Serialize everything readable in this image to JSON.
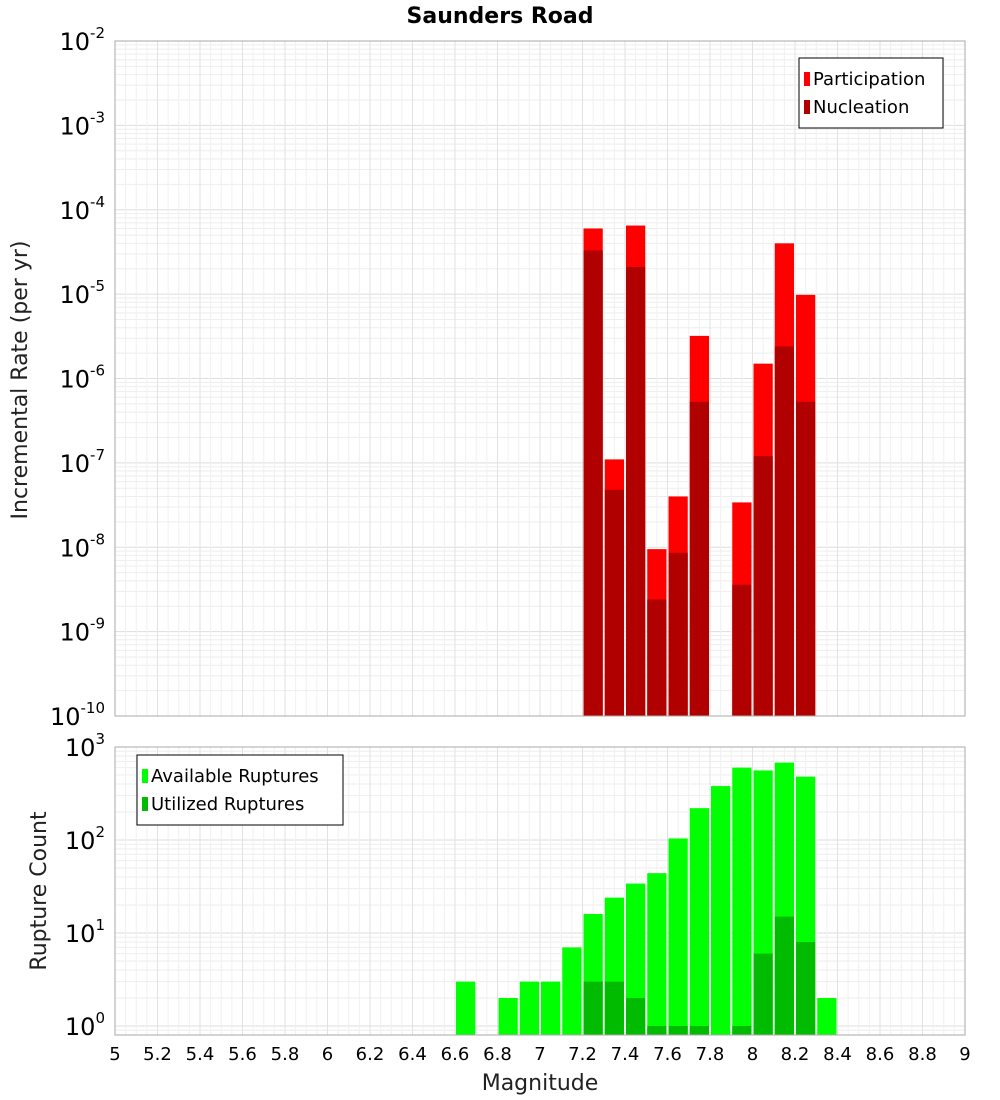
{
  "chart_data": [
    {
      "type": "bar",
      "title": "Saunders Road",
      "ylabel": "Incremental Rate (per yr)",
      "xlabel": "",
      "yscale": "log",
      "ylim": [
        1e-10,
        0.01
      ],
      "xlim": [
        5,
        9
      ],
      "bar_width": 0.1,
      "grid": true,
      "legend_position": "top-right",
      "y_ticks": [
        {
          "base": "10",
          "exp": "-10"
        },
        {
          "base": "10",
          "exp": "-9"
        },
        {
          "base": "10",
          "exp": "-8"
        },
        {
          "base": "10",
          "exp": "-7"
        },
        {
          "base": "10",
          "exp": "-6"
        },
        {
          "base": "10",
          "exp": "-5"
        },
        {
          "base": "10",
          "exp": "-4"
        },
        {
          "base": "10",
          "exp": "-3"
        },
        {
          "base": "10",
          "exp": "-2"
        }
      ],
      "series": [
        {
          "name": "Participation",
          "color": "#ff0000",
          "x": [
            7.25,
            7.35,
            7.45,
            7.55,
            7.65,
            7.75,
            7.95,
            8.05,
            8.15,
            8.25
          ],
          "values": [
            6e-05,
            1.1e-07,
            6.5e-05,
            9.5e-09,
            4e-08,
            3.2e-06,
            3.4e-08,
            1.5e-06,
            4e-05,
            9.8e-06
          ]
        },
        {
          "name": "Nucleation",
          "color": "#b00000",
          "x": [
            7.25,
            7.35,
            7.45,
            7.55,
            7.65,
            7.75,
            7.95,
            8.05,
            8.15,
            8.25
          ],
          "values": [
            3.3e-05,
            4.8e-08,
            2.1e-05,
            2.4e-09,
            8.6e-09,
            5.3e-07,
            3.6e-09,
            1.2e-07,
            2.4e-06,
            5.3e-07
          ]
        }
      ]
    },
    {
      "type": "bar",
      "title": "",
      "ylabel": "Rupture Count",
      "xlabel": "Magnitude",
      "yscale": "log",
      "ylim": [
        0.8,
        1000
      ],
      "xlim": [
        5,
        9
      ],
      "bar_width": 0.1,
      "grid": true,
      "legend_position": "top-left",
      "x_ticks": [
        "5",
        "5.2",
        "5.4",
        "5.6",
        "5.8",
        "6",
        "6.2",
        "6.4",
        "6.6",
        "6.8",
        "7",
        "7.2",
        "7.4",
        "7.6",
        "7.8",
        "8",
        "8.2",
        "8.4",
        "8.6",
        "8.8",
        "9"
      ],
      "y_ticks": [
        {
          "base": "10",
          "exp": "0"
        },
        {
          "base": "10",
          "exp": "1"
        },
        {
          "base": "10",
          "exp": "2"
        },
        {
          "base": "10",
          "exp": "3"
        }
      ],
      "series": [
        {
          "name": "Available Ruptures",
          "color": "#00ff00",
          "x": [
            6.65,
            6.85,
            6.95,
            7.05,
            7.15,
            7.25,
            7.35,
            7.45,
            7.55,
            7.65,
            7.75,
            7.85,
            7.95,
            8.05,
            8.15,
            8.25,
            8.35
          ],
          "values": [
            3,
            2,
            3,
            3,
            7,
            16,
            24,
            34,
            44,
            104,
            220,
            380,
            600,
            560,
            680,
            480,
            2
          ]
        },
        {
          "name": "Utilized Ruptures",
          "color": "#00bb00",
          "x": [
            7.25,
            7.35,
            7.45,
            7.55,
            7.65,
            7.75,
            7.95,
            8.05,
            8.15,
            8.25
          ],
          "values": [
            3,
            3,
            2,
            1,
            1,
            1,
            1,
            6,
            15,
            8
          ]
        }
      ]
    }
  ]
}
